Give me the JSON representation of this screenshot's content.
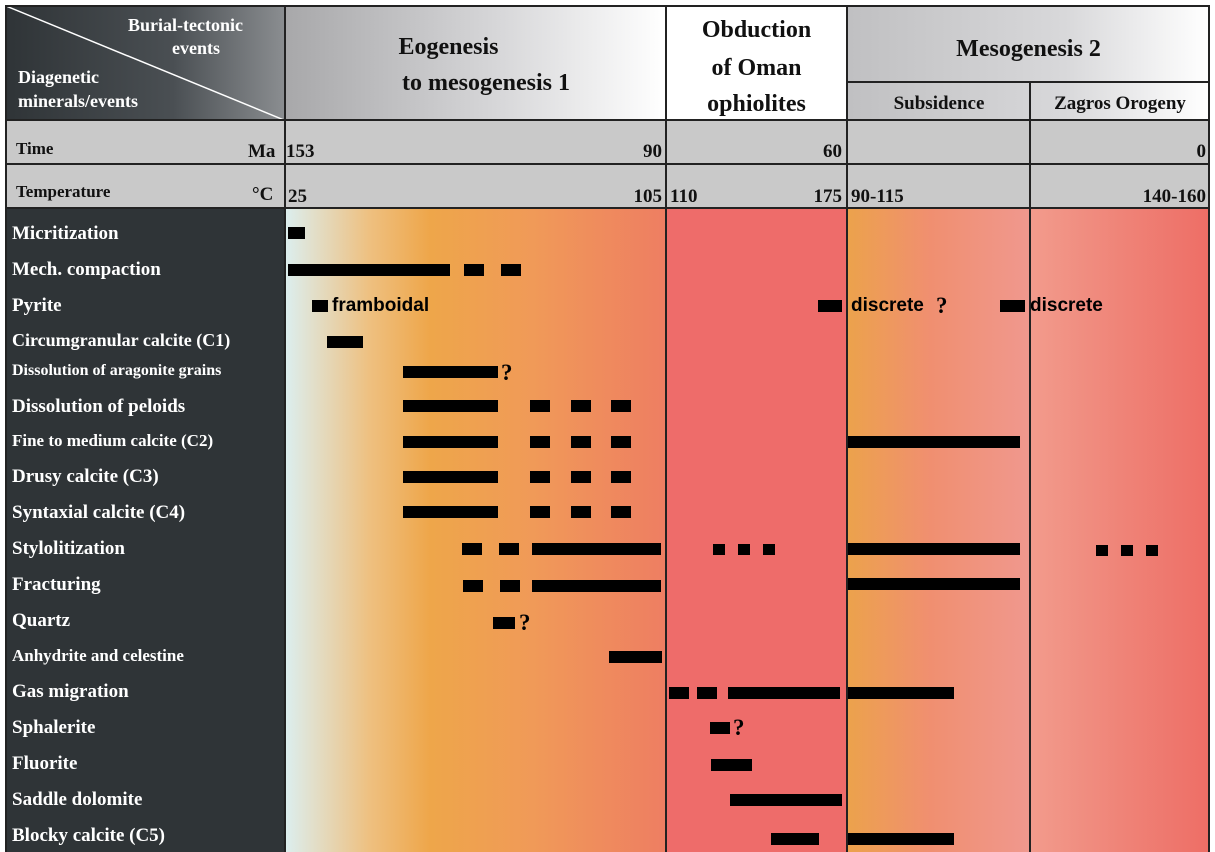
{
  "corner": {
    "top": [
      "Burial-tectonic",
      "events"
    ],
    "bottom": [
      "Diagenetic",
      "minerals/events"
    ]
  },
  "headers": {
    "eogenesis": [
      "Eogenesis",
      "to mesogenesis 1"
    ],
    "obduction": [
      "Obduction",
      "of Oman",
      "ophiolites"
    ],
    "mesogenesis2": "Mesogenesis 2",
    "subsidence": "Subsidence",
    "zagros": "Zagros Orogeny"
  },
  "time_row": {
    "label": "Time",
    "unit": "Ma",
    "values": [
      "153",
      "90",
      "60",
      "0"
    ]
  },
  "temp_row": {
    "label": "Temperature",
    "unit": "°C",
    "values": [
      "25",
      "105",
      "110",
      "175",
      "90-115",
      "140-160"
    ]
  },
  "colors": {
    "dark_panel": "#2f3437",
    "header_gray": "#c9c9c9",
    "eogenesis_gradient": [
      "#dceeee",
      "#eea64a",
      "#f08a5d",
      "#ee7a62"
    ],
    "obduction": "#ee6c6a",
    "subsidence_gradient": [
      "#eca24c",
      "#f08c80",
      "#f0978d"
    ],
    "zagros_gradient": [
      "#f29b8c",
      "#ee6e66"
    ],
    "bar": "#000000"
  },
  "events": [
    {
      "name": "Micritization",
      "small": false
    },
    {
      "name": "Mech. compaction",
      "small": false
    },
    {
      "name": "Pyrite",
      "small": false
    },
    {
      "name": "Circumgranular calcite (C1)",
      "small": false
    },
    {
      "name": "Dissolution of aragonite grains",
      "small": true
    },
    {
      "name": "Dissolution of peloids",
      "small": false
    },
    {
      "name": "Fine to medium calcite (C2)",
      "small": true
    },
    {
      "name": "Drusy calcite (C3)",
      "small": false
    },
    {
      "name": "Syntaxial calcite (C4)",
      "small": false
    },
    {
      "name": "Stylolitization",
      "small": false
    },
    {
      "name": "Fracturing",
      "small": false
    },
    {
      "name": "Quartz",
      "small": false
    },
    {
      "name": "Anhydrite and celestine",
      "small": true
    },
    {
      "name": "Gas migration",
      "small": false
    },
    {
      "name": "Sphalerite",
      "small": false
    },
    {
      "name": "Fluorite",
      "small": false
    },
    {
      "name": "Saddle dolomite",
      "small": false
    },
    {
      "name": "Blocky calcite (C5)",
      "small": false
    }
  ],
  "notes": {
    "framboidal": "framboidal",
    "discrete_q": "discrete",
    "discrete": "discrete",
    "question": "?"
  }
}
